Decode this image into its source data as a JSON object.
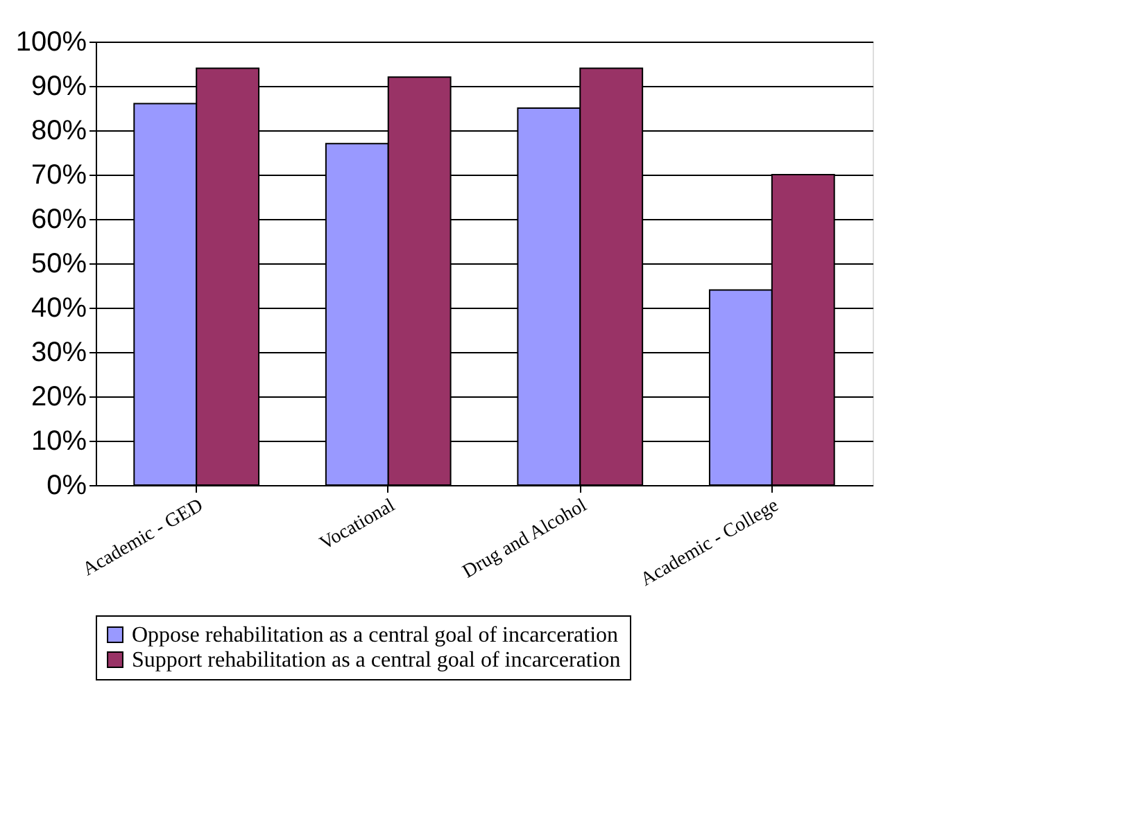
{
  "chart_data": {
    "type": "bar",
    "categories": [
      "Academic - GED",
      "Vocational",
      "Drug and Alcohol",
      "Academic - College"
    ],
    "series": [
      {
        "name": "Oppose rehabilitation as a central goal of incarceration",
        "color": "#9999ff",
        "values": [
          86,
          77,
          85,
          44
        ]
      },
      {
        "name": "Support rehabilitation as a central goal of incarceration",
        "color": "#993366",
        "values": [
          94,
          92,
          94,
          70
        ]
      }
    ],
    "ylim": [
      0,
      100
    ],
    "yticks": [
      {
        "value": 0,
        "label": "0%"
      },
      {
        "value": 10,
        "label": "10%"
      },
      {
        "value": 20,
        "label": "20%"
      },
      {
        "value": 30,
        "label": "30%"
      },
      {
        "value": 40,
        "label": "40%"
      },
      {
        "value": 50,
        "label": "50%"
      },
      {
        "value": 60,
        "label": "60%"
      },
      {
        "value": 70,
        "label": "70%"
      },
      {
        "value": 80,
        "label": "80%"
      },
      {
        "value": 90,
        "label": "90%"
      },
      {
        "value": 100,
        "label": "100%"
      }
    ],
    "grid": "y",
    "legend": "bottom"
  }
}
